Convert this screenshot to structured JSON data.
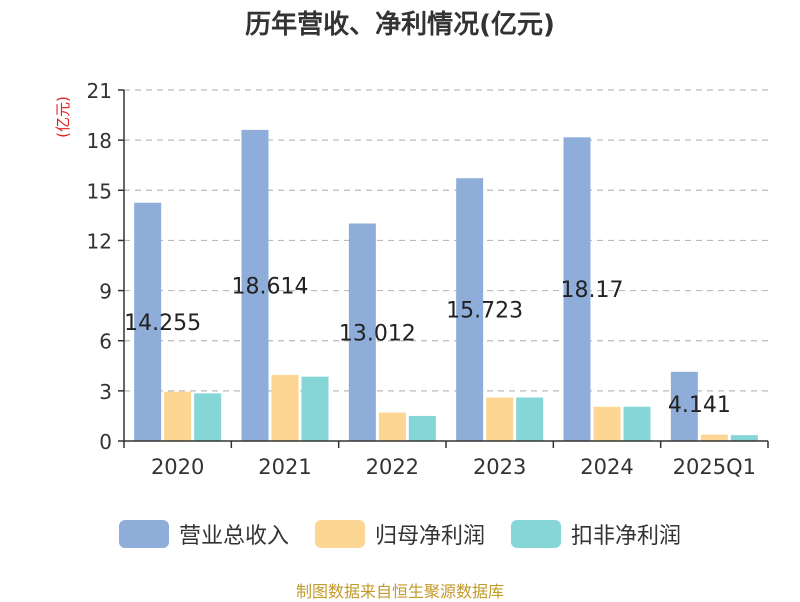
{
  "title": "历年营收、净利情况(亿元)",
  "source": "制图数据来自恒生聚源数据库",
  "colors": {
    "revenue": "#8eaed9",
    "parent_net_profit": "#fdd693",
    "deducted_net_profit": "#86d6d8",
    "ylabel": "#e02020",
    "grid": "#bbbbbb",
    "axis": "#333333"
  },
  "chart_data": {
    "type": "bar",
    "categories": [
      "2020",
      "2021",
      "2022",
      "2023",
      "2024",
      "2025Q1"
    ],
    "series": [
      {
        "name": "营业总收入",
        "values": [
          14.255,
          18.614,
          13.012,
          15.723,
          18.17,
          4.141
        ]
      },
      {
        "name": "归母净利润",
        "values": [
          2.95,
          3.95,
          1.7,
          2.6,
          2.05,
          0.38
        ]
      },
      {
        "name": "扣非净利润",
        "values": [
          2.85,
          3.85,
          1.5,
          2.6,
          2.05,
          0.35
        ]
      }
    ],
    "data_labels": [
      "14.255",
      "18.614",
      "13.012",
      "15.723",
      "18.17",
      "4.141"
    ],
    "ylabel": "(亿元)",
    "yticks": [
      0,
      3,
      6,
      9,
      12,
      15,
      18,
      21
    ],
    "ylim": [
      0,
      21
    ],
    "grid": true,
    "legend_position": "bottom"
  }
}
